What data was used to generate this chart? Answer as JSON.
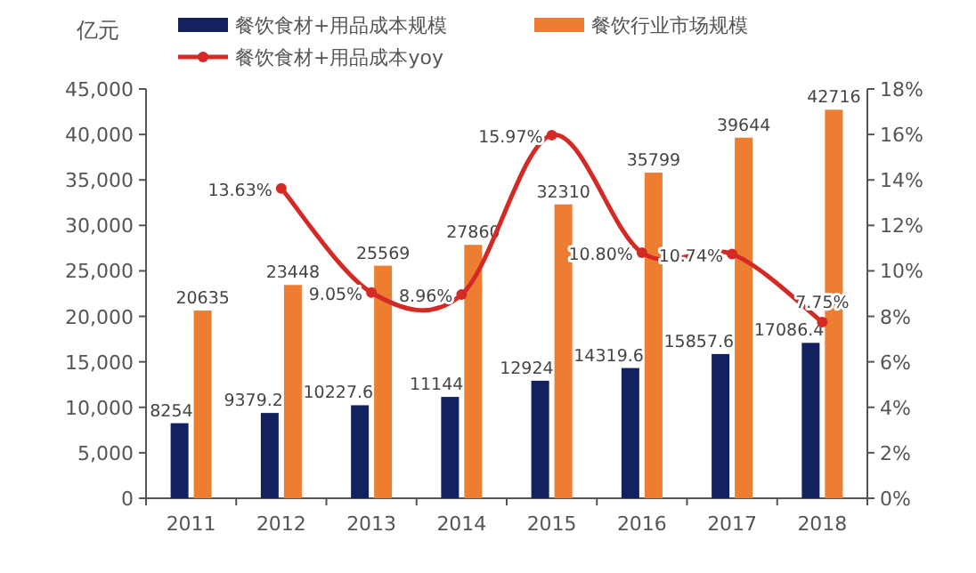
{
  "chart_data": {
    "type": "bar",
    "ylabel": "亿元",
    "legend": "top",
    "marker": "circle",
    "grid": false,
    "categories": [
      "2011",
      "2012",
      "2013",
      "2014",
      "2015",
      "2016",
      "2017",
      "2018"
    ],
    "series": [
      {
        "name": "餐饮食材+用品成本规模",
        "color": "#13225f",
        "values": [
          8254,
          9379.2,
          10227.6,
          11144,
          12924,
          14319.6,
          15857.6,
          17086.4
        ],
        "value_labels": [
          "8254",
          "9379.2",
          "10227.6",
          "11144",
          "12924",
          "14319.6",
          "15857.6",
          "17086.4"
        ]
      },
      {
        "name": "餐饮行业市场规模",
        "color": "#ed7d31",
        "values": [
          20635,
          23448,
          25569,
          27860,
          32310,
          35799,
          39644,
          42716
        ],
        "value_labels": [
          "20635",
          "23448",
          "25569",
          "27860",
          "32310",
          "35799",
          "39644",
          "42716"
        ]
      },
      {
        "name": "餐饮食材+用品成本yoy",
        "type": "line",
        "axis": "y2",
        "color": "#d42a25",
        "values": [
          null,
          13.63,
          9.05,
          8.96,
          15.97,
          10.8,
          10.74,
          7.75
        ],
        "value_labels": [
          null,
          "13.63%",
          "9.05%",
          "8.96%",
          "15.97%",
          "10.80%",
          "10.74%",
          "7.75%"
        ]
      }
    ],
    "ylim": [
      0,
      45000
    ],
    "yticks": [
      {
        "value": 0,
        "label": "0"
      },
      {
        "value": 5000,
        "label": "5,000"
      },
      {
        "value": 10000,
        "label": "10,000"
      },
      {
        "value": 15000,
        "label": "15,000"
      },
      {
        "value": 20000,
        "label": "20,000"
      },
      {
        "value": 25000,
        "label": "25,000"
      },
      {
        "value": 30000,
        "label": "30,000"
      },
      {
        "value": 35000,
        "label": "35,000"
      },
      {
        "value": 40000,
        "label": "40,000"
      },
      {
        "value": 45000,
        "label": "45,000"
      }
    ],
    "y2lim": [
      0,
      18
    ],
    "y2ticks": [
      {
        "value": 0,
        "label": "0%"
      },
      {
        "value": 2,
        "label": "2%"
      },
      {
        "value": 4,
        "label": "4%"
      },
      {
        "value": 6,
        "label": "6%"
      },
      {
        "value": 8,
        "label": "8%"
      },
      {
        "value": 10,
        "label": "10%"
      },
      {
        "value": 12,
        "label": "12%"
      },
      {
        "value": 14,
        "label": "14%"
      },
      {
        "value": 16,
        "label": "16%"
      },
      {
        "value": 18,
        "label": "18%"
      }
    ]
  }
}
